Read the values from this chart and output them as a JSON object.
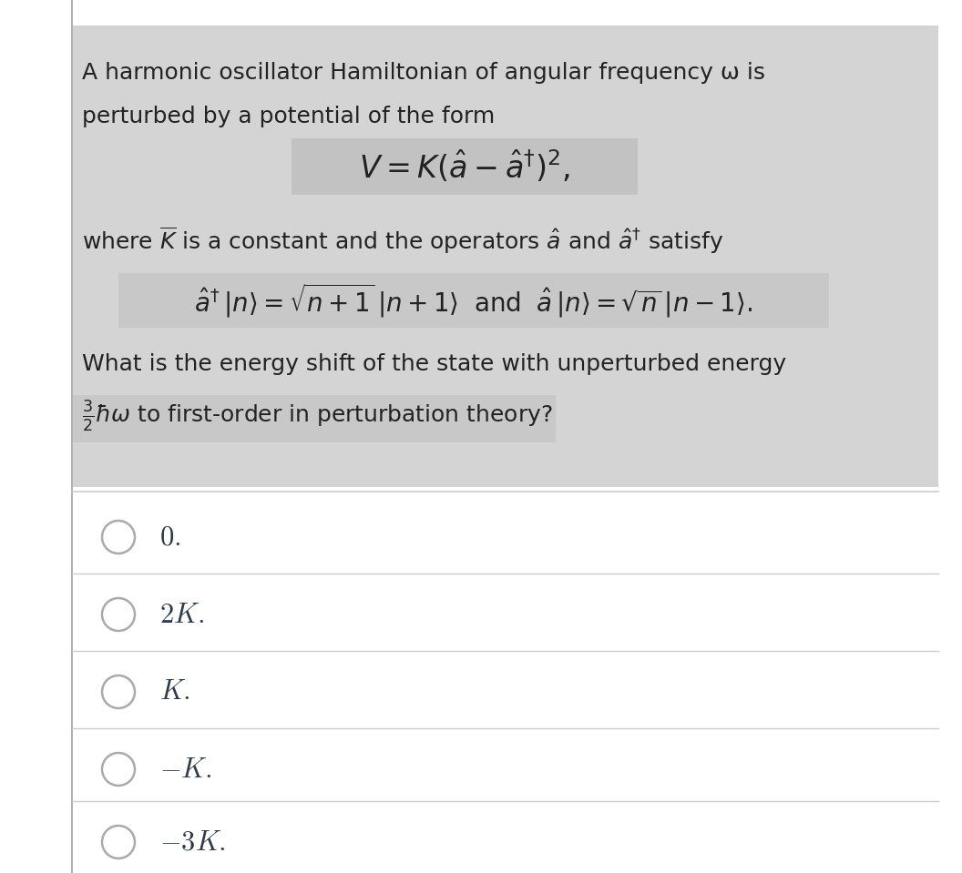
{
  "bg_color": "#ffffff",
  "question_bg": "#d4d4d4",
  "formula_bg": "#c2c2c2",
  "operator_bg": "#c8c8c8",
  "final_q_bg": "#c8c8c8",
  "left_bar_color": "#b0b0b0",
  "text_color": "#222222",
  "option_text_color": "#2d3a4a",
  "option_circle_color": "#aaaaaa",
  "separator_color": "#cccccc",
  "line1": "A harmonic oscillator Hamiltonian of angular frequency ω is",
  "line2": "perturbed by a potential of the form",
  "formula_V": "$V = K(\\hat{a} - \\hat{a}^{\\dagger})^{2},$",
  "where_line": "where $\\overline{K}$ is a constant and the operators $\\hat{a}$ and $\\hat{a}^{\\dagger}$ satisfy",
  "operator_formula": "$\\hat{a}^{\\dagger}\\,|n\\rangle = \\sqrt{n+1}\\,|n+1\\rangle\\;$ and $\\;\\hat{a}\\,|n\\rangle = \\sqrt{n}\\,|n-1\\rangle.$",
  "q_line1": "What is the energy shift of the state with unperturbed energy",
  "q_line2": "$\\frac{3}{2}\\hbar\\omega$ to first-order in perturbation theory?",
  "options_math": [
    "$0.$",
    "$2K.$",
    "$K.$",
    "$-K.$",
    "$-3K.$"
  ],
  "font_size_text": 18,
  "font_size_formula": 20,
  "font_size_options": 22
}
